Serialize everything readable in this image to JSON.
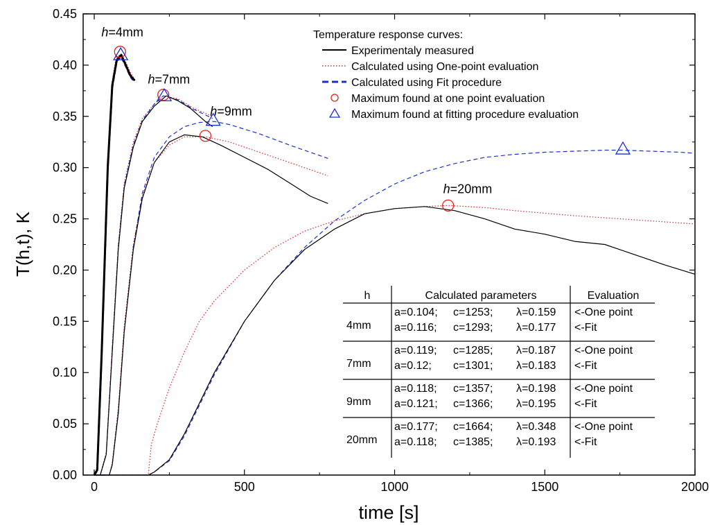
{
  "chart_data": {
    "type": "line",
    "xlabel": "time [s]",
    "ylabel": "T(h,t), K",
    "xlim": [
      0,
      2000
    ],
    "ylim": [
      0,
      0.45
    ],
    "xticks": [
      0,
      500,
      1000,
      1500,
      2000
    ],
    "yticks": [
      0.0,
      0.05,
      0.1,
      0.15,
      0.2,
      0.25,
      0.3,
      0.35,
      0.4,
      0.45
    ],
    "xtick_labels": [
      "0",
      "500",
      "1000",
      "1500",
      "2000"
    ],
    "ytick_labels": [
      "0.00",
      "0.05",
      "0.10",
      "0.15",
      "0.20",
      "0.25",
      "0.30",
      "0.35",
      "0.40",
      "0.45"
    ],
    "grid": false,
    "legend_position": "top-right",
    "legend_title": "Temperature response curves:",
    "legend": [
      {
        "label": "Experimentaly measured",
        "style": "solid",
        "color": "#000000"
      },
      {
        "label": "Calculated using One-point evaluation",
        "style": "dotted",
        "color": "#e02020"
      },
      {
        "label": "Calculated using Fit procedure",
        "style": "dashed",
        "color": "#1a2fd0"
      },
      {
        "label": "Maximum found at one point evaluation",
        "style": "circle",
        "color": "#e02020"
      },
      {
        "label": "Maximum found at fitting procedure evaluation",
        "style": "triangle",
        "color": "#1a2fd0"
      }
    ],
    "curve_labels": [
      {
        "text_italic": "h",
        "text": "=4mm",
        "x": 70,
        "y": 0.428
      },
      {
        "text_italic": "h",
        "text": "=7mm",
        "x": 225,
        "y": 0.382
      },
      {
        "text_italic": "h",
        "text": "=9mm",
        "x": 432,
        "y": 0.351
      },
      {
        "text_italic": "h",
        "text": "=20mm",
        "x": 1208,
        "y": 0.275
      }
    ],
    "series": [
      {
        "group": "4mm",
        "kind": "measured",
        "points": [
          [
            0,
            0
          ],
          [
            10,
            0.005
          ],
          [
            25,
            0.12
          ],
          [
            45,
            0.3
          ],
          [
            60,
            0.38
          ],
          [
            75,
            0.405
          ],
          [
            90,
            0.41
          ],
          [
            105,
            0.4
          ],
          [
            120,
            0.39
          ],
          [
            135,
            0.385
          ]
        ]
      },
      {
        "group": "4mm",
        "kind": "one_point",
        "points": [
          [
            0,
            0
          ],
          [
            10,
            0.006
          ],
          [
            25,
            0.125
          ],
          [
            45,
            0.305
          ],
          [
            60,
            0.382
          ],
          [
            75,
            0.408
          ],
          [
            90,
            0.41
          ],
          [
            105,
            0.402
          ],
          [
            120,
            0.392
          ],
          [
            135,
            0.385
          ]
        ]
      },
      {
        "group": "4mm",
        "kind": "fit",
        "points": [
          [
            0,
            0
          ],
          [
            10,
            0.004
          ],
          [
            25,
            0.118
          ],
          [
            45,
            0.298
          ],
          [
            60,
            0.378
          ],
          [
            75,
            0.404
          ],
          [
            90,
            0.408
          ],
          [
            105,
            0.399
          ],
          [
            120,
            0.389
          ],
          [
            135,
            0.383
          ]
        ]
      },
      {
        "group": "7mm",
        "kind": "measured",
        "points": [
          [
            0,
            0
          ],
          [
            20,
            0
          ],
          [
            40,
            0.02
          ],
          [
            60,
            0.12
          ],
          [
            80,
            0.22
          ],
          [
            100,
            0.28
          ],
          [
            130,
            0.32
          ],
          [
            160,
            0.345
          ],
          [
            200,
            0.36
          ],
          [
            240,
            0.37
          ],
          [
            280,
            0.365
          ],
          [
            320,
            0.358
          ],
          [
            370,
            0.345
          ],
          [
            394,
            0.34
          ]
        ]
      },
      {
        "group": "7mm",
        "kind": "one_point",
        "points": [
          [
            0,
            0
          ],
          [
            20,
            0
          ],
          [
            40,
            0.022
          ],
          [
            60,
            0.125
          ],
          [
            80,
            0.225
          ],
          [
            100,
            0.285
          ],
          [
            130,
            0.325
          ],
          [
            160,
            0.348
          ],
          [
            200,
            0.362
          ],
          [
            230,
            0.37
          ],
          [
            280,
            0.367
          ],
          [
            330,
            0.358
          ],
          [
            394,
            0.35
          ]
        ]
      },
      {
        "group": "7mm",
        "kind": "fit",
        "points": [
          [
            0,
            0
          ],
          [
            20,
            0
          ],
          [
            40,
            0.02
          ],
          [
            60,
            0.122
          ],
          [
            80,
            0.222
          ],
          [
            100,
            0.282
          ],
          [
            130,
            0.322
          ],
          [
            160,
            0.346
          ],
          [
            200,
            0.362
          ],
          [
            230,
            0.37
          ],
          [
            280,
            0.366
          ],
          [
            330,
            0.357
          ],
          [
            394,
            0.348
          ]
        ]
      },
      {
        "group": "9mm",
        "kind": "measured",
        "points": [
          [
            0,
            0
          ],
          [
            50,
            0
          ],
          [
            60,
            0.01
          ],
          [
            80,
            0.06
          ],
          [
            100,
            0.14
          ],
          [
            130,
            0.22
          ],
          [
            160,
            0.27
          ],
          [
            200,
            0.305
          ],
          [
            250,
            0.325
          ],
          [
            300,
            0.332
          ],
          [
            360,
            0.33
          ],
          [
            420,
            0.322
          ],
          [
            500,
            0.31
          ],
          [
            580,
            0.298
          ],
          [
            650,
            0.285
          ],
          [
            720,
            0.272
          ],
          [
            778,
            0.265
          ]
        ]
      },
      {
        "group": "9mm",
        "kind": "one_point",
        "points": [
          [
            0,
            0
          ],
          [
            50,
            0
          ],
          [
            60,
            0.012
          ],
          [
            80,
            0.065
          ],
          [
            100,
            0.145
          ],
          [
            130,
            0.225
          ],
          [
            160,
            0.272
          ],
          [
            200,
            0.305
          ],
          [
            250,
            0.322
          ],
          [
            300,
            0.33
          ],
          [
            370,
            0.33
          ],
          [
            450,
            0.325
          ],
          [
            550,
            0.315
          ],
          [
            650,
            0.305
          ],
          [
            778,
            0.292
          ]
        ]
      },
      {
        "group": "9mm",
        "kind": "fit",
        "points": [
          [
            0,
            0
          ],
          [
            50,
            0
          ],
          [
            60,
            0.01
          ],
          [
            80,
            0.062
          ],
          [
            100,
            0.14
          ],
          [
            130,
            0.222
          ],
          [
            160,
            0.275
          ],
          [
            200,
            0.31
          ],
          [
            250,
            0.33
          ],
          [
            300,
            0.34
          ],
          [
            350,
            0.344
          ],
          [
            400,
            0.345
          ],
          [
            450,
            0.342
          ],
          [
            550,
            0.333
          ],
          [
            650,
            0.322
          ],
          [
            778,
            0.309
          ]
        ]
      },
      {
        "group": "20mm",
        "kind": "measured",
        "points": [
          [
            0,
            0
          ],
          [
            180,
            0
          ],
          [
            200,
            0.003
          ],
          [
            250,
            0.015
          ],
          [
            300,
            0.04
          ],
          [
            350,
            0.07
          ],
          [
            400,
            0.1
          ],
          [
            500,
            0.15
          ],
          [
            600,
            0.19
          ],
          [
            700,
            0.22
          ],
          [
            800,
            0.24
          ],
          [
            900,
            0.255
          ],
          [
            1000,
            0.26
          ],
          [
            1100,
            0.262
          ],
          [
            1200,
            0.258
          ],
          [
            1300,
            0.25
          ],
          [
            1400,
            0.24
          ],
          [
            1500,
            0.235
          ],
          [
            1600,
            0.228
          ],
          [
            1700,
            0.225
          ],
          [
            1800,
            0.215
          ],
          [
            1900,
            0.205
          ],
          [
            2000,
            0.196
          ]
        ]
      },
      {
        "group": "20mm",
        "kind": "one_point",
        "points": [
          [
            0,
            0
          ],
          [
            180,
            0
          ],
          [
            190,
            0.03
          ],
          [
            210,
            0.05
          ],
          [
            250,
            0.085
          ],
          [
            300,
            0.12
          ],
          [
            350,
            0.15
          ],
          [
            400,
            0.17
          ],
          [
            500,
            0.2
          ],
          [
            600,
            0.222
          ],
          [
            700,
            0.238
          ],
          [
            800,
            0.248
          ],
          [
            900,
            0.255
          ],
          [
            1000,
            0.26
          ],
          [
            1100,
            0.262
          ],
          [
            1180,
            0.263
          ],
          [
            1300,
            0.261
          ],
          [
            1400,
            0.258
          ],
          [
            1600,
            0.253
          ],
          [
            1800,
            0.249
          ],
          [
            2000,
            0.245
          ]
        ]
      },
      {
        "group": "20mm",
        "kind": "fit",
        "points": [
          [
            0,
            0
          ],
          [
            180,
            0
          ],
          [
            200,
            0.003
          ],
          [
            250,
            0.014
          ],
          [
            300,
            0.038
          ],
          [
            350,
            0.068
          ],
          [
            400,
            0.098
          ],
          [
            500,
            0.15
          ],
          [
            600,
            0.19
          ],
          [
            700,
            0.222
          ],
          [
            800,
            0.248
          ],
          [
            900,
            0.268
          ],
          [
            1000,
            0.284
          ],
          [
            1100,
            0.296
          ],
          [
            1200,
            0.304
          ],
          [
            1300,
            0.31
          ],
          [
            1400,
            0.313
          ],
          [
            1500,
            0.315
          ],
          [
            1600,
            0.316
          ],
          [
            1700,
            0.317
          ],
          [
            1760,
            0.317
          ],
          [
            1850,
            0.316
          ],
          [
            1950,
            0.315
          ],
          [
            2000,
            0.314
          ]
        ]
      }
    ],
    "one_point_maxima": [
      {
        "group": "4mm",
        "x": 86,
        "y": 0.413
      },
      {
        "group": "7mm",
        "x": 230,
        "y": 0.371
      },
      {
        "group": "9mm",
        "x": 370,
        "y": 0.331
      },
      {
        "group": "20mm",
        "x": 1178,
        "y": 0.263
      }
    ],
    "fit_maxima": [
      {
        "group": "4mm",
        "x": 88,
        "y": 0.41
      },
      {
        "group": "7mm",
        "x": 233,
        "y": 0.37
      },
      {
        "group": "9mm",
        "x": 396,
        "y": 0.346
      },
      {
        "group": "20mm",
        "x": 1760,
        "y": 0.318
      }
    ],
    "table": {
      "headers": [
        "h",
        "Calculated parameters",
        "Evaluation"
      ],
      "groups": [
        {
          "h": "4mm",
          "rows": [
            {
              "a": "a=0.104;",
              "c": "c=1253;",
              "lambda": "λ=0.159",
              "evaluation": "<-One point"
            },
            {
              "a": "a=0.116;",
              "c": "c=1293;",
              "lambda": "λ=0.177",
              "evaluation": "<-Fit"
            }
          ]
        },
        {
          "h": "7mm",
          "rows": [
            {
              "a": "a=0.119;",
              "c": "c=1285;",
              "lambda": "λ=0.187",
              "evaluation": "<-One point"
            },
            {
              "a": "a=0.12;",
              "c": "c=1301;",
              "lambda": "λ=0.183",
              "evaluation": "<-Fit"
            }
          ]
        },
        {
          "h": "9mm",
          "rows": [
            {
              "a": "a=0.118;",
              "c": "c=1357;",
              "lambda": "λ=0.198",
              "evaluation": "<-One point"
            },
            {
              "a": "a=0.121;",
              "c": "c=1366;",
              "lambda": "λ=0.195",
              "evaluation": "<-Fit"
            }
          ]
        },
        {
          "h": "20mm",
          "rows": [
            {
              "a": "a=0.177;",
              "c": "c=1664;",
              "lambda": "λ=0.348",
              "evaluation": "<-One point"
            },
            {
              "a": "a=0.118;",
              "c": "c=1385;",
              "lambda": "λ=0.193",
              "evaluation": "<-Fit"
            }
          ]
        }
      ]
    }
  },
  "colors": {
    "measured": "#000000",
    "one_point": "#e02020",
    "fit": "#1a2fd0"
  }
}
